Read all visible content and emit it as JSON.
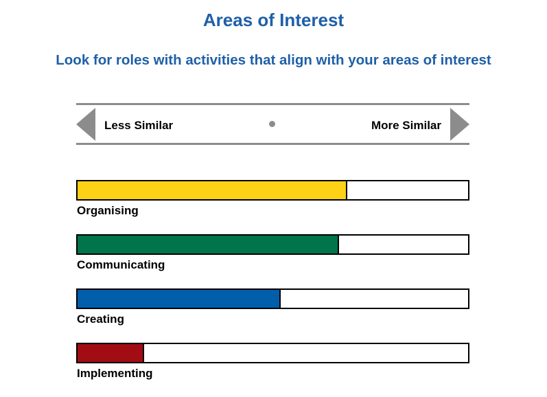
{
  "header": {
    "title": "Areas of Interest",
    "subtitle": "Look for roles with activities that align with your areas of interest"
  },
  "scale": {
    "left_label": "Less Similar",
    "right_label": "More Similar",
    "color": "#8c8c8c"
  },
  "chart_data": {
    "type": "bar",
    "orientation": "horizontal",
    "categories": [
      "Organising",
      "Communicating",
      "Creating",
      "Implementing"
    ],
    "values": [
      69,
      67,
      52,
      17
    ],
    "colors": [
      "#fcd116",
      "#00754a",
      "#005eab",
      "#a10d12"
    ],
    "xlim": [
      0,
      100
    ],
    "grid": false,
    "legend": "none"
  }
}
